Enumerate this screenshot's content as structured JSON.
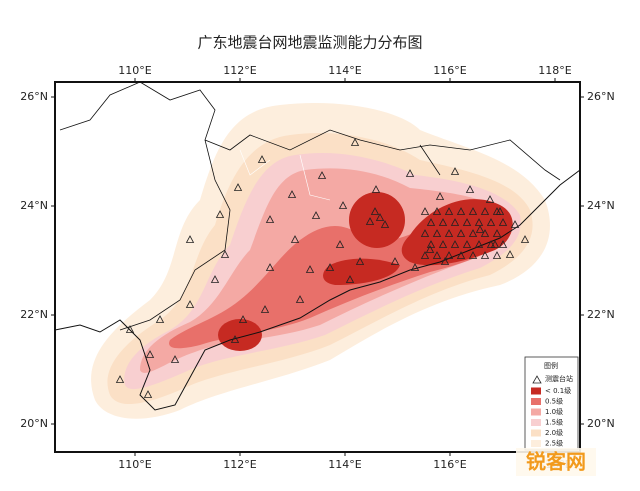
{
  "map": {
    "title": "广东地震台网地震监测能力分布图",
    "lon_ticks": [
      {
        "value": 110,
        "label": "110°E"
      },
      {
        "value": 112,
        "label": "112°E"
      },
      {
        "value": 114,
        "label": "114°E"
      },
      {
        "value": 116,
        "label": "116°E"
      },
      {
        "value": 118,
        "label": "118°E"
      }
    ],
    "lat_ticks": [
      {
        "value": 26,
        "label": "26°N"
      },
      {
        "value": 24,
        "label": "24°N"
      },
      {
        "value": 22,
        "label": "22°N"
      },
      {
        "value": 20,
        "label": "20°N"
      }
    ],
    "legend": {
      "title": "图例",
      "station": "测震台站",
      "levels": [
        {
          "label": "< 0.1级",
          "color": "#c62a22"
        },
        {
          "label": "0.5级",
          "color": "#e8706a"
        },
        {
          "label": "1.0级",
          "color": "#f4a9a4"
        },
        {
          "label": "1.5级",
          "color": "#f8cfd0"
        },
        {
          "label": "2.0级",
          "color": "#fbe0c6"
        },
        {
          "label": "2.5级",
          "color": "#fdeedd"
        }
      ]
    },
    "watermark": "锐客网"
  }
}
